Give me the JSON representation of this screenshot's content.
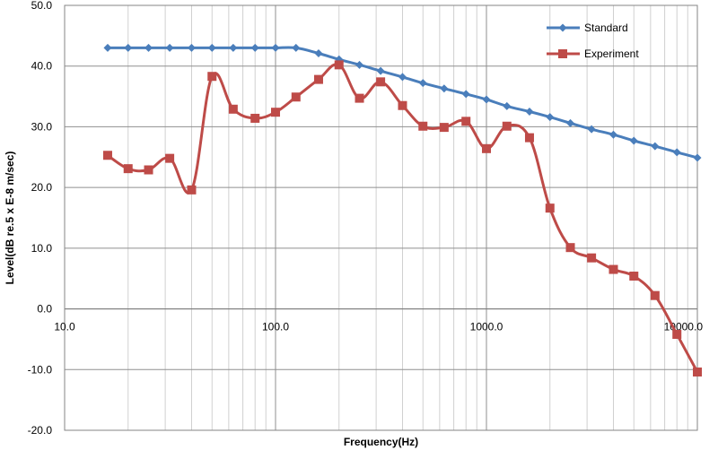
{
  "chart_data": {
    "type": "line",
    "x_scale": "log",
    "xlabel": "Frequency(Hz)",
    "ylabel": "Level(dB re.5 x E-8 m/sec)",
    "xlim": [
      10,
      10000
    ],
    "ylim": [
      -20,
      50
    ],
    "x_tick_labels": [
      "10.0",
      "100.0",
      "1000.0",
      "10000.0"
    ],
    "x_tick_values": [
      10,
      100,
      1000,
      10000
    ],
    "y_tick_labels": [
      "50.0",
      "40.0",
      "30.0",
      "20.0",
      "10.0",
      "0.0",
      "-10.0",
      "-20.0"
    ],
    "y_tick_values": [
      50,
      40,
      30,
      20,
      10,
      0,
      -10,
      -20
    ],
    "grid": true,
    "legend_position": "top-right",
    "x": [
      16,
      20,
      25,
      31.5,
      40,
      50,
      63,
      80,
      100,
      125,
      160,
      200,
      250,
      315,
      400,
      500,
      630,
      800,
      1000,
      1250,
      1600,
      2000,
      2500,
      3150,
      4000,
      5000,
      6300,
      8000,
      10000
    ],
    "series": [
      {
        "name": "Standard",
        "color": "#4a7ebb",
        "marker": "diamond",
        "values": [
          43,
          43,
          43,
          43,
          43,
          43,
          43,
          43,
          43,
          43,
          42.1,
          41.1,
          40.2,
          39.2,
          38.2,
          37.2,
          36.3,
          35.4,
          34.5,
          33.4,
          32.5,
          31.6,
          30.6,
          29.6,
          28.7,
          27.7,
          26.8,
          25.8,
          24.9
        ]
      },
      {
        "name": "Experiment",
        "color": "#be4b48",
        "marker": "square",
        "values": [
          25.3,
          23.1,
          22.9,
          24.8,
          19.6,
          38.3,
          32.9,
          31.4,
          32.4,
          34.9,
          37.8,
          40.2,
          34.7,
          37.4,
          33.5,
          30.1,
          29.9,
          30.9,
          26.4,
          30.1,
          28.2,
          16.6,
          10.1,
          8.4,
          6.5,
          5.4,
          2.2,
          -4.2,
          -10.4
        ]
      }
    ]
  }
}
